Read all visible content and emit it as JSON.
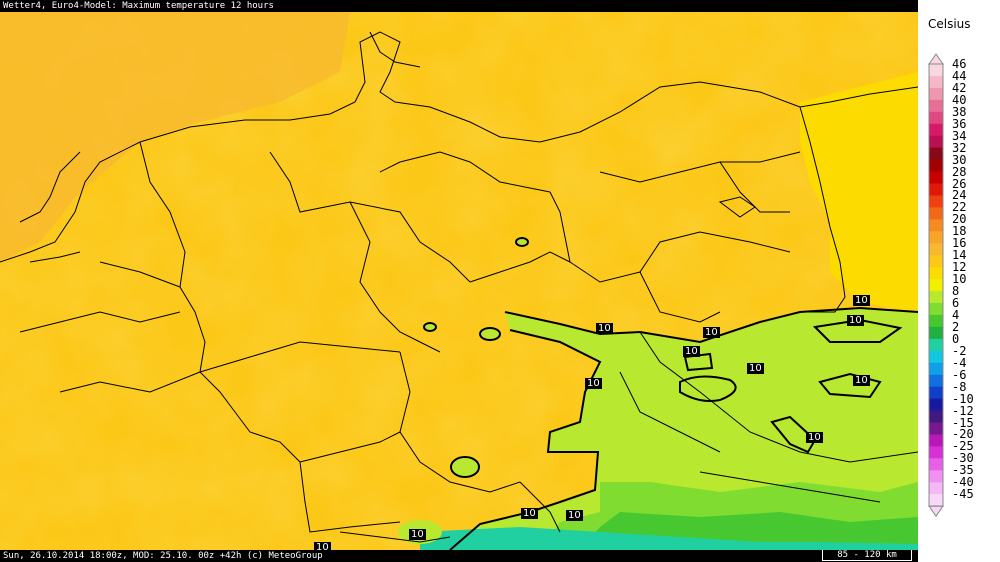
{
  "header": {
    "title": "Wetter4, Euro4-Model: Maximum temperature 12 hours"
  },
  "footer": {
    "info": "Sun, 26.10.2014 18:00z, MOD: 25.10. 00z +42h (c) MeteoGroup",
    "scale": "85 - 120 km"
  },
  "legend": {
    "unit": "Celsius",
    "entries": [
      {
        "label": "46",
        "color": "#f8d8e0"
      },
      {
        "label": "44",
        "color": "#f4b8c8"
      },
      {
        "label": "42",
        "color": "#ee98b0"
      },
      {
        "label": "40",
        "color": "#e87098"
      },
      {
        "label": "38",
        "color": "#e04880"
      },
      {
        "label": "36",
        "color": "#d81868"
      },
      {
        "label": "34",
        "color": "#b81050"
      },
      {
        "label": "32",
        "color": "#880818"
      },
      {
        "label": "30",
        "color": "#a00000"
      },
      {
        "label": "28",
        "color": "#c80000"
      },
      {
        "label": "26",
        "color": "#e01808"
      },
      {
        "label": "24",
        "color": "#f04010"
      },
      {
        "label": "22",
        "color": "#f06818"
      },
      {
        "label": "20",
        "color": "#f48a20"
      },
      {
        "label": "18",
        "color": "#f8a428"
      },
      {
        "label": "16",
        "color": "#f8b830"
      },
      {
        "label": "14",
        "color": "#fcc818"
      },
      {
        "label": "12",
        "color": "#fcdc00"
      },
      {
        "label": "10",
        "color": "#f0f000"
      },
      {
        "label": "8",
        "color": "#b8e830"
      },
      {
        "label": "6",
        "color": "#80dc30"
      },
      {
        "label": "4",
        "color": "#48c830"
      },
      {
        "label": "2",
        "color": "#20b040"
      },
      {
        "label": "0",
        "color": "#20d0a0"
      },
      {
        "label": "-2",
        "color": "#10c8e0"
      },
      {
        "label": "-4",
        "color": "#10a0e8"
      },
      {
        "label": "-6",
        "color": "#1070e0"
      },
      {
        "label": "-8",
        "color": "#1040c8"
      },
      {
        "label": "-10",
        "color": "#1818a0"
      },
      {
        "label": "-12",
        "color": "#401880"
      },
      {
        "label": "-15",
        "color": "#781890"
      },
      {
        "label": "-20",
        "color": "#b818b8"
      },
      {
        "label": "-25",
        "color": "#d830d8"
      },
      {
        "label": "-30",
        "color": "#e860e8"
      },
      {
        "label": "-35",
        "color": "#f090f0"
      },
      {
        "label": "-40",
        "color": "#f4b8f4"
      },
      {
        "label": "-45",
        "color": "#f8d8f8"
      }
    ]
  },
  "map": {
    "background_colors": {
      "dominant": "#fcc818",
      "warm": "#f8b830",
      "cool": "#fcdc00",
      "mild": "#b8e830",
      "cold": "#48c830",
      "coldest": "#20d0a0"
    },
    "isotherm_labels": [
      "10",
      "10",
      "10",
      "10",
      "10",
      "10",
      "10",
      "10",
      "10",
      "10",
      "10",
      "10"
    ]
  }
}
